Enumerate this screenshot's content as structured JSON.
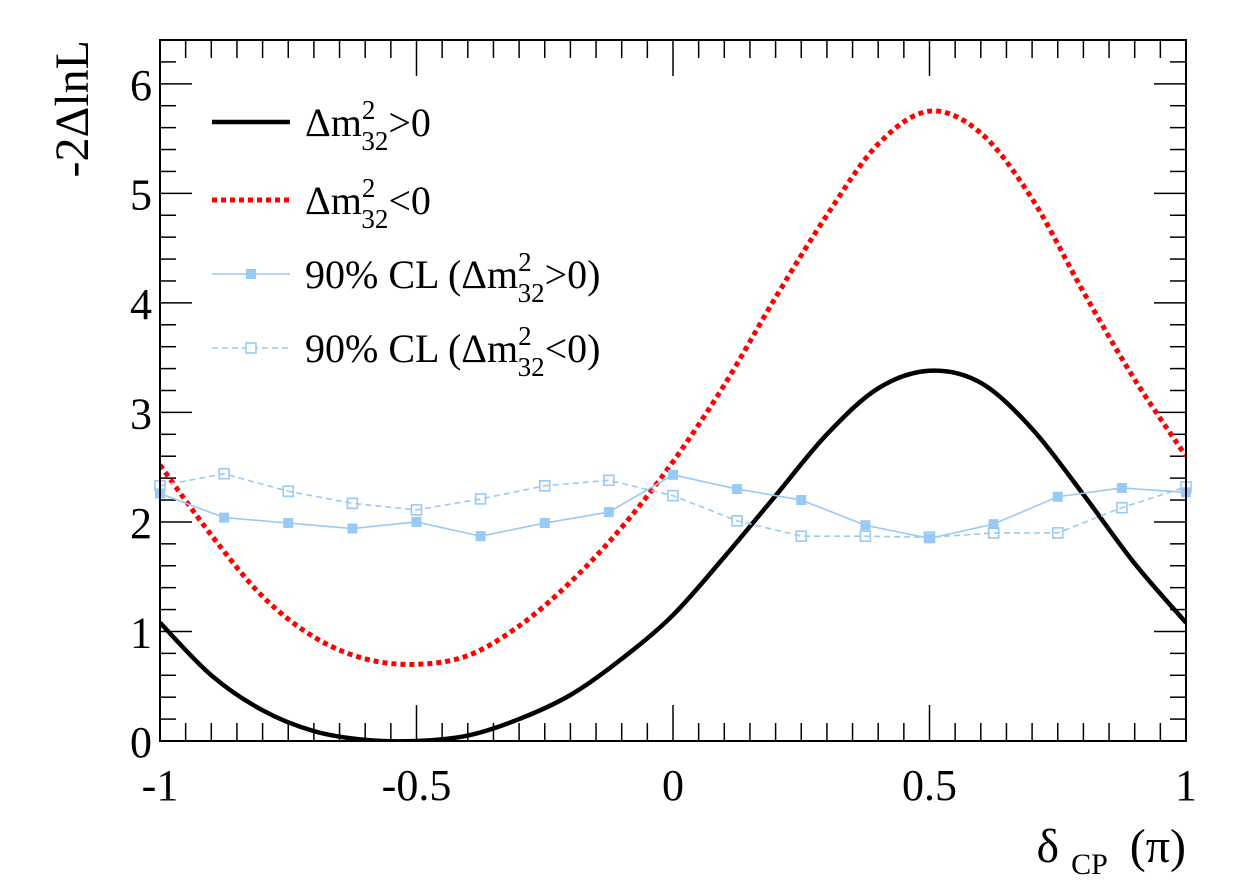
{
  "chart_data": {
    "type": "line",
    "xlabel": "δ_CP (π)",
    "xlabel_main": "δ",
    "xlabel_sub": "CP",
    "xlabel_unit": "(π)",
    "ylabel": "-2ΔlnL",
    "xlim": [
      -1,
      1
    ],
    "ylim": [
      0,
      6.4
    ],
    "x_ticks": [
      -1,
      -0.5,
      0,
      0.5,
      1
    ],
    "x_tick_labels": [
      "-1",
      "-0.5",
      "0",
      "0.5",
      "1"
    ],
    "y_ticks": [
      0,
      1,
      2,
      3,
      4,
      5,
      6
    ],
    "y_tick_labels": [
      "0",
      "1",
      "2",
      "3",
      "4",
      "5",
      "6"
    ],
    "legend_position": "top-left",
    "series": [
      {
        "name": "Δm²₃₂>0",
        "legend_prefix": "Δm",
        "legend_sup": "2",
        "legend_sub": "32",
        "legend_suffix": ">0",
        "style": "solid-thick",
        "color": "#000000",
        "x": [
          -1.0,
          -0.9,
          -0.8,
          -0.7,
          -0.6,
          -0.5,
          -0.4,
          -0.3,
          -0.2,
          -0.1,
          0.0,
          0.1,
          0.2,
          0.3,
          0.4,
          0.5,
          0.6,
          0.7,
          0.8,
          0.9,
          1.0
        ],
        "values": [
          1.08,
          0.6,
          0.28,
          0.09,
          0.01,
          0.0,
          0.05,
          0.2,
          0.42,
          0.75,
          1.15,
          1.68,
          2.24,
          2.8,
          3.22,
          3.38,
          3.27,
          2.85,
          2.25,
          1.62,
          1.08
        ]
      },
      {
        "name": "Δm²₃₂<0",
        "legend_prefix": "Δm",
        "legend_sup": "2",
        "legend_sub": "32",
        "legend_suffix": "<0",
        "style": "dotted-thick",
        "color": "#ff0000",
        "x": [
          -1.0,
          -0.9,
          -0.8,
          -0.7,
          -0.6,
          -0.5,
          -0.4,
          -0.3,
          -0.2,
          -0.1,
          0.0,
          0.1,
          0.2,
          0.3,
          0.4,
          0.5,
          0.6,
          0.7,
          0.8,
          0.9,
          1.0
        ],
        "values": [
          2.52,
          1.88,
          1.32,
          0.95,
          0.75,
          0.7,
          0.78,
          1.05,
          1.45,
          1.95,
          2.55,
          3.25,
          4.05,
          4.8,
          5.45,
          5.75,
          5.55,
          4.95,
          4.1,
          3.3,
          2.6
        ]
      },
      {
        "name": "90% CL (Δm²₃₂>0)",
        "legend_prefix": "90% CL (Δm",
        "legend_sup": "2",
        "legend_sub": "32",
        "legend_suffix": ">0)",
        "style": "solid-thin-filled-square",
        "color": "#99c9f5",
        "x": [
          -1.0,
          -0.875,
          -0.75,
          -0.625,
          -0.5,
          -0.375,
          -0.25,
          -0.125,
          0.0,
          0.125,
          0.25,
          0.375,
          0.5,
          0.625,
          0.75,
          0.875,
          1.0
        ],
        "values": [
          2.26,
          2.04,
          1.99,
          1.94,
          2.0,
          1.87,
          1.99,
          2.09,
          2.43,
          2.3,
          2.2,
          1.97,
          1.85,
          1.98,
          2.23,
          2.31,
          2.27
        ]
      },
      {
        "name": "90% CL (Δm²₃₂<0)",
        "legend_prefix": "90% CL (Δm",
        "legend_sup": "2",
        "legend_sub": "32",
        "legend_suffix": "<0)",
        "style": "dashed-thin-open-square",
        "color": "#99c9f5",
        "x": [
          -1.0,
          -0.875,
          -0.75,
          -0.625,
          -0.5,
          -0.375,
          -0.25,
          -0.125,
          0.0,
          0.125,
          0.25,
          0.375,
          0.5,
          0.625,
          0.75,
          0.875,
          1.0
        ],
        "values": [
          2.33,
          2.44,
          2.28,
          2.17,
          2.11,
          2.21,
          2.33,
          2.38,
          2.24,
          2.01,
          1.87,
          1.87,
          1.86,
          1.9,
          1.9,
          2.13,
          2.32
        ]
      }
    ]
  }
}
